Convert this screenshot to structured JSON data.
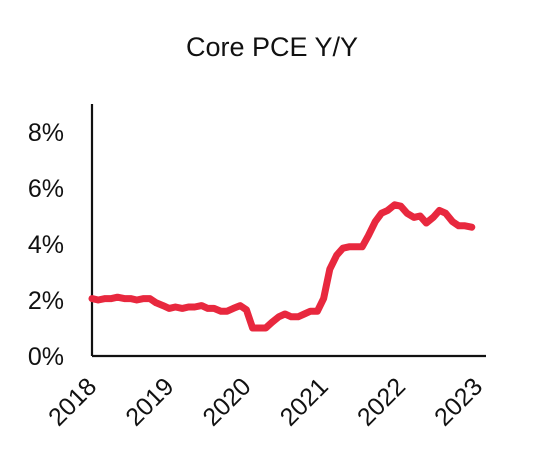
{
  "chart_data": {
    "type": "line",
    "title": "Core PCE Y/Y",
    "xlabel": "",
    "ylabel": "",
    "ylim": [
      0,
      8
    ],
    "xlim": [
      2018,
      2023
    ],
    "y_ticks": [
      "0%",
      "2%",
      "4%",
      "6%",
      "8%"
    ],
    "y_tick_values": [
      0,
      2,
      4,
      6,
      8
    ],
    "x_ticks": [
      "2018",
      "2019",
      "2020",
      "2021",
      "2022",
      "2023"
    ],
    "x_tick_values": [
      2018,
      2019,
      2020,
      2021,
      2022,
      2023
    ],
    "grid": false,
    "line_color": "#e8283e",
    "series": [
      {
        "x": [
          2018.0,
          2018.08,
          2018.17,
          2018.25,
          2018.33,
          2018.42,
          2018.5,
          2018.58,
          2018.67,
          2018.75,
          2018.83,
          2018.92,
          2019.0,
          2019.08,
          2019.17,
          2019.25,
          2019.33,
          2019.42,
          2019.5,
          2019.58,
          2019.67,
          2019.75,
          2019.83,
          2019.92,
          2020.0,
          2020.08,
          2020.17,
          2020.25,
          2020.33,
          2020.42,
          2020.5,
          2020.58,
          2020.67,
          2020.75,
          2020.83,
          2020.92,
          2021.0,
          2021.08,
          2021.17,
          2021.25,
          2021.33,
          2021.42,
          2021.5,
          2021.58,
          2021.67,
          2021.75,
          2021.83,
          2021.92,
          2022.0,
          2022.08,
          2022.17,
          2022.25,
          2022.33,
          2022.42,
          2022.5,
          2022.58,
          2022.67,
          2022.75,
          2022.83,
          2022.92
        ],
        "values": [
          2.05,
          2.0,
          2.05,
          2.05,
          2.1,
          2.05,
          2.05,
          2.0,
          2.05,
          2.05,
          1.9,
          1.8,
          1.7,
          1.75,
          1.7,
          1.75,
          1.75,
          1.8,
          1.7,
          1.7,
          1.6,
          1.6,
          1.7,
          1.8,
          1.65,
          1.0,
          1.0,
          1.0,
          1.2,
          1.4,
          1.5,
          1.4,
          1.4,
          1.5,
          1.6,
          1.6,
          2.05,
          3.1,
          3.6,
          3.85,
          3.9,
          3.9,
          3.9,
          4.3,
          4.8,
          5.1,
          5.2,
          5.4,
          5.35,
          5.1,
          4.95,
          5.0,
          4.75,
          4.95,
          5.2,
          5.1,
          4.8,
          4.65,
          4.65,
          4.6
        ]
      }
    ]
  }
}
